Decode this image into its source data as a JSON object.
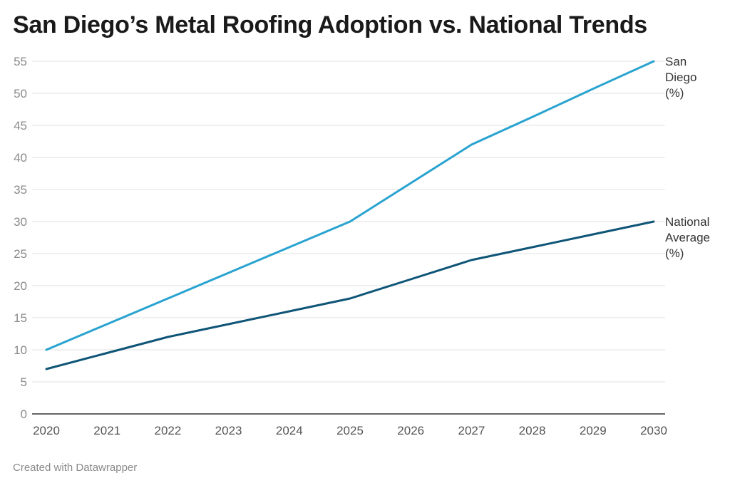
{
  "title": "San Diego’s Metal Roofing Adoption vs. National Trends",
  "footer": "Created with Datawrapper",
  "chart_data": {
    "type": "line",
    "x": [
      2020,
      2021,
      2022,
      2023,
      2024,
      2025,
      2026,
      2027,
      2028,
      2029,
      2030
    ],
    "yticks": [
      0,
      5,
      10,
      15,
      20,
      25,
      30,
      35,
      40,
      45,
      50,
      55
    ],
    "ylim": [
      0,
      55
    ],
    "xlim": [
      2020,
      2030
    ],
    "grid": true,
    "series": [
      {
        "name": "San Diego (%)",
        "label_lines": [
          "San",
          "Diego",
          "(%)"
        ],
        "color": "#29a3d0",
        "values": [
          10,
          14,
          18,
          22,
          26,
          30,
          36,
          42,
          46.3,
          50.7,
          55
        ]
      },
      {
        "name": "National Average (%)",
        "label_lines": [
          "National",
          "Average",
          "(%)"
        ],
        "color": "#0f5577",
        "values": [
          7,
          9.5,
          12,
          14,
          16,
          18,
          21,
          24,
          26,
          28,
          30
        ]
      }
    ]
  }
}
